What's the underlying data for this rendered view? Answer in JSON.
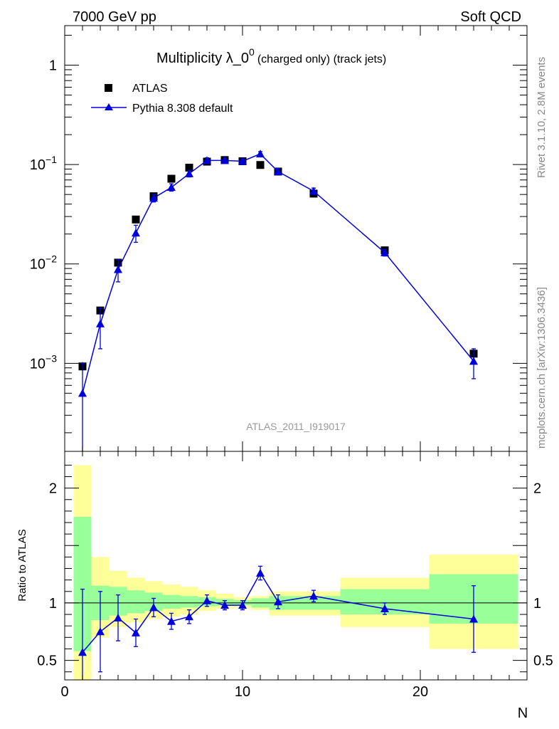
{
  "header": {
    "left": "7000 GeV pp",
    "right": "Soft QCD"
  },
  "side_text": {
    "top": "Rivet 3.1.10,  2.8M events",
    "bottom": "mcplots.cern.ch [arXiv:1306.3436]"
  },
  "watermark": "ATLAS_2011_I919017",
  "chart_data": [
    {
      "type": "scatter",
      "panel": "main",
      "title": {
        "main": "Multiplicity λ_0",
        "sup": "0",
        "small": "(charged only) (track jets)"
      },
      "ylabel": "",
      "xlabel": "",
      "y_scale": "log",
      "xlim": [
        0,
        26
      ],
      "ylim": [
        0.00013,
        2.5
      ],
      "y_ticks": [
        {
          "value": 0.001,
          "base": "10",
          "exp": "−3"
        },
        {
          "value": 0.01,
          "base": "10",
          "exp": "−2"
        },
        {
          "value": 0.1,
          "base": "10",
          "exp": "−1"
        },
        {
          "value": 1,
          "base": "1",
          "exp": ""
        }
      ],
      "legend": {
        "position": "top-left"
      },
      "series": [
        {
          "name": "ATLAS",
          "style": "black-square",
          "color": "#000000",
          "x": [
            1,
            2,
            3,
            4,
            5,
            6,
            7,
            8,
            9,
            10,
            11,
            12,
            14,
            18,
            23
          ],
          "y": [
            0.00093,
            0.0034,
            0.0103,
            0.028,
            0.048,
            0.072,
            0.093,
            0.107,
            0.111,
            0.108,
            0.099,
            0.085,
            0.051,
            0.0137,
            0.00125
          ],
          "err": [
            0.0001,
            0.0002,
            0.0005,
            0.001,
            0.002,
            0.002,
            0.003,
            0.003,
            0.003,
            0.003,
            0.003,
            0.003,
            0.002,
            0.0007,
            0.0001
          ]
        },
        {
          "name": "Pythia 8.308 default",
          "style": "blue-triangle-line",
          "color": "#0000dd",
          "x": [
            1,
            2,
            3,
            4,
            5,
            6,
            7,
            8,
            9,
            10,
            11,
            12,
            14,
            18,
            23
          ],
          "y": [
            0.0005,
            0.0025,
            0.0088,
            0.0205,
            0.046,
            0.059,
            0.081,
            0.11,
            0.11,
            0.108,
            0.128,
            0.085,
            0.054,
            0.013,
            0.00105
          ],
          "err_lo": [
            0.0005,
            0.0011,
            0.0022,
            0.004,
            0.004,
            0.005,
            0.006,
            0.007,
            0.006,
            0.006,
            0.007,
            0.006,
            0.004,
            0.001,
            0.00035
          ],
          "err_hi": [
            0.0005,
            0.0011,
            0.0022,
            0.004,
            0.004,
            0.005,
            0.006,
            0.007,
            0.006,
            0.006,
            0.007,
            0.006,
            0.004,
            0.001,
            0.00035
          ]
        }
      ]
    },
    {
      "type": "line",
      "panel": "ratio",
      "ylabel": "Ratio to ATLAS",
      "xlabel": "N",
      "xlim": [
        0,
        26
      ],
      "ylim": [
        0.33,
        2.32
      ],
      "x_ticks": [
        0,
        10,
        20
      ],
      "y_ticks": [
        0.5,
        1,
        2
      ],
      "reference_line": 1,
      "bands": {
        "edges": [
          0.5,
          1.5,
          2.5,
          3.5,
          4.5,
          5.5,
          6.5,
          7.5,
          8.5,
          9.5,
          10.5,
          11.5,
          12.5,
          15.5,
          20.5,
          25.5
        ],
        "yellow": [
          [
            0.3,
            2.2
          ],
          [
            0.7,
            1.4
          ],
          [
            0.79,
            1.28
          ],
          [
            0.83,
            1.22
          ],
          [
            0.86,
            1.19
          ],
          [
            0.88,
            1.16
          ],
          [
            0.9,
            1.14
          ],
          [
            0.93,
            1.11
          ],
          [
            0.95,
            1.08
          ],
          [
            0.96,
            1.05
          ],
          [
            0.94,
            1.06
          ],
          [
            0.89,
            1.1
          ],
          [
            0.89,
            1.1
          ],
          [
            0.79,
            1.22
          ],
          [
            0.6,
            1.42
          ]
        ],
        "green": [
          [
            0.58,
            1.75
          ],
          [
            0.85,
            1.15
          ],
          [
            0.89,
            1.14
          ],
          [
            0.91,
            1.11
          ],
          [
            0.93,
            1.09
          ],
          [
            0.95,
            1.07
          ],
          [
            0.96,
            1.06
          ],
          [
            0.97,
            1.05
          ],
          [
            0.975,
            1.035
          ],
          [
            0.98,
            1.025
          ],
          [
            0.96,
            1.04
          ],
          [
            0.94,
            1.06
          ],
          [
            0.94,
            1.06
          ],
          [
            0.9,
            1.12
          ],
          [
            0.82,
            1.25
          ]
        ]
      },
      "series": [
        {
          "name": "Pythia 8.308 default",
          "color": "#0000dd",
          "x": [
            1,
            2,
            3,
            4,
            5,
            6,
            7,
            8,
            9,
            10,
            11,
            12,
            14,
            18,
            23
          ],
          "y": [
            0.57,
            0.75,
            0.87,
            0.74,
            0.96,
            0.84,
            0.88,
            1.02,
            0.98,
            0.98,
            1.26,
            1.01,
            1.06,
            0.95,
            0.86
          ],
          "err": [
            0.55,
            0.35,
            0.2,
            0.12,
            0.08,
            0.07,
            0.06,
            0.05,
            0.04,
            0.04,
            0.06,
            0.06,
            0.05,
            0.05,
            0.29
          ]
        }
      ]
    }
  ]
}
